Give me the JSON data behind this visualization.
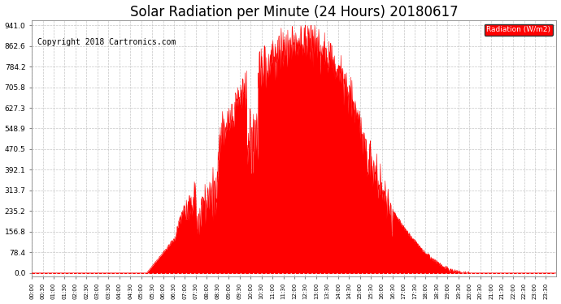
{
  "title": "Solar Radiation per Minute (24 Hours) 20180617",
  "copyright": "Copyright 2018 Cartronics.com",
  "legend_text": "Radiation (W/m2)",
  "y_max": 941.0,
  "y_ticks": [
    0.0,
    78.4,
    156.8,
    235.2,
    313.7,
    392.1,
    470.5,
    548.9,
    627.3,
    705.8,
    784.2,
    862.6,
    941.0
  ],
  "fill_color": "#FF0000",
  "background_color": "#FFFFFF",
  "grid_color": "#C0C0C0",
  "legend_bg": "#FF0000",
  "title_fontsize": 12,
  "copyright_fontsize": 7
}
